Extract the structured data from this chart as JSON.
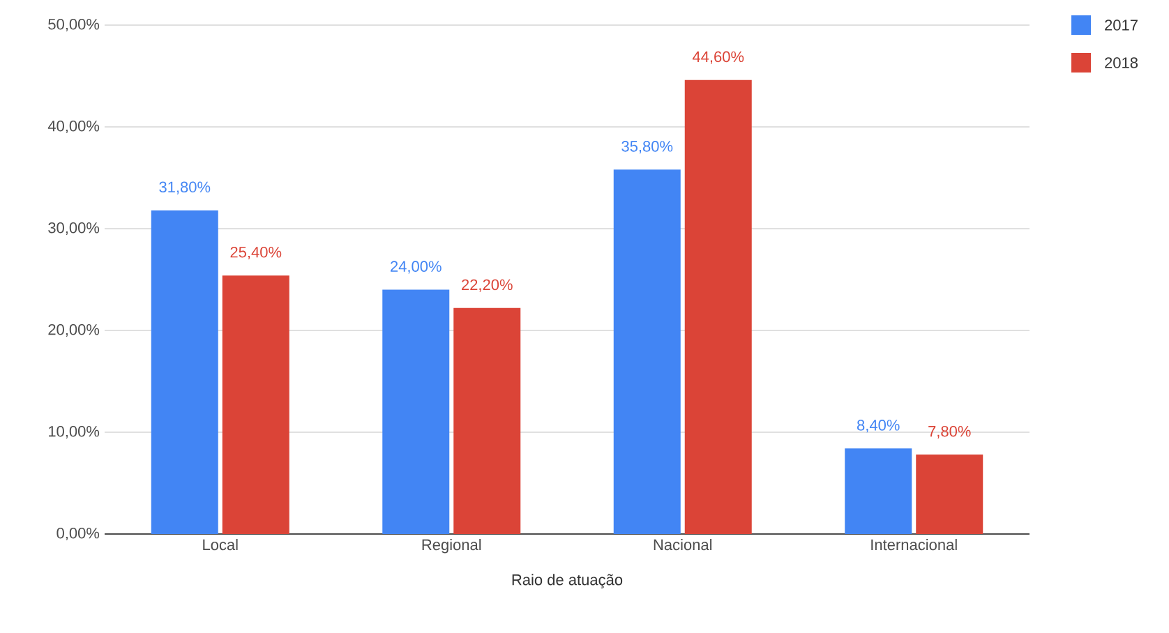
{
  "chart_data": {
    "type": "bar",
    "xlabel": "Raio de atuação",
    "categories": [
      "Local",
      "Regional",
      "Nacional",
      "Internacional"
    ],
    "series": [
      {
        "name": "2017",
        "color": "#4285f4",
        "values": [
          31.8,
          24.0,
          35.8,
          8.4
        ],
        "value_labels": [
          "31,80%",
          "24,00%",
          "35,80%",
          "8,40%"
        ]
      },
      {
        "name": "2018",
        "color": "#db4437",
        "values": [
          25.4,
          22.2,
          44.6,
          7.8
        ],
        "value_labels": [
          "25,40%",
          "22,20%",
          "44,60%",
          "7,80%"
        ]
      }
    ],
    "ylim": [
      0,
      50
    ],
    "yticks": [
      {
        "value": 0,
        "label": "0,00%"
      },
      {
        "value": 10,
        "label": "10,00%"
      },
      {
        "value": 20,
        "label": "20,00%"
      },
      {
        "value": 30,
        "label": "30,00%"
      },
      {
        "value": 40,
        "label": "40,00%"
      },
      {
        "value": 50,
        "label": "50,00%"
      }
    ],
    "grid": "y",
    "legend": "top right"
  }
}
